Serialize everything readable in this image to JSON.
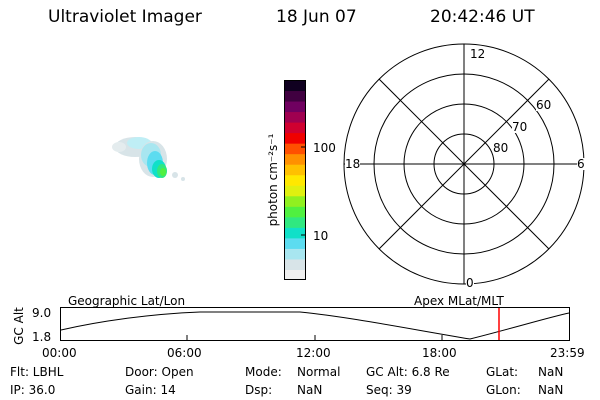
{
  "header": {
    "instrument": "Ultraviolet Imager",
    "date": "18 Jun 07",
    "time": "20:42:46 UT"
  },
  "colorbar": {
    "label": "photon cm⁻²s⁻¹",
    "ticks": [
      "100",
      "10"
    ],
    "colors": [
      "#f0f0f0",
      "#d8e4e8",
      "#a8e6f0",
      "#5cdcf0",
      "#10e0c8",
      "#30e880",
      "#50f040",
      "#90f020",
      "#e0f010",
      "#ffe800",
      "#ffc000",
      "#ff9000",
      "#ff5000",
      "#f00000",
      "#d00030",
      "#a00050",
      "#700060",
      "#400040",
      "#100020"
    ]
  },
  "polar_plot": {
    "mlt_labels": {
      "top": "12",
      "left": "18",
      "right": "6",
      "bottom": "0"
    },
    "lat_labels": [
      "60",
      "70",
      "80"
    ]
  },
  "altitude_plot": {
    "axis_title": "GC Alt",
    "y_ticks": [
      "9.0",
      "1.8"
    ],
    "left_label": "Geographic Lat/Lon",
    "right_label": "Apex MLat/MLT",
    "x_ticks": [
      "00:00",
      "06:00",
      "12:00",
      "18:00",
      "23:59"
    ],
    "marker_color": "#ff0000"
  },
  "status": {
    "flt": "Flt: LBHL",
    "ip": "IP: 36.0",
    "door": "Door: Open",
    "gain": "Gain: 14",
    "mode_label": "Mode:",
    "mode_value": "Normal",
    "dsp_label": "Dsp:",
    "dsp_value": "NaN",
    "gcalt": "GC Alt: 6.8 Re",
    "seq": "Seq: 39",
    "glat_label": "GLat:",
    "glat_value": "NaN",
    "glon_label": "GLon:",
    "glon_value": "NaN"
  }
}
